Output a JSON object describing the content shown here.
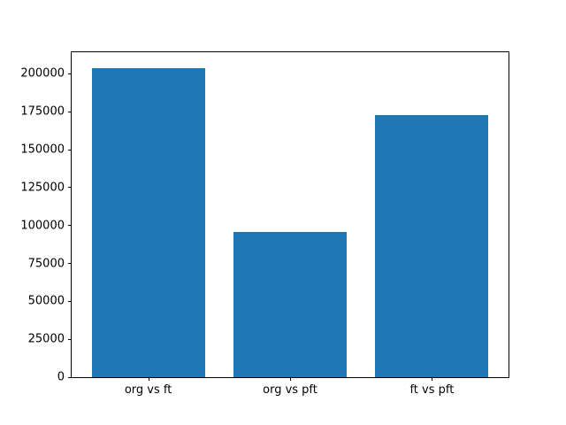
{
  "figure": {
    "background": "#ffffff"
  },
  "chart_data": {
    "type": "bar",
    "title": "",
    "xlabel": "",
    "ylabel": "",
    "categories": [
      "org vs ft",
      "org vs pft",
      "ft vs pft"
    ],
    "values": [
      204000,
      95700,
      173000
    ],
    "bar_color": "#1f77b4",
    "bar_width": 0.8,
    "xlim": [
      -0.54,
      2.54
    ],
    "ylim": [
      0,
      214200
    ],
    "yticks": [
      0,
      25000,
      50000,
      75000,
      100000,
      125000,
      150000,
      175000,
      200000
    ],
    "ytick_labels": [
      "0",
      "25000",
      "50000",
      "75000",
      "100000",
      "125000",
      "150000",
      "175000",
      "200000"
    ],
    "grid": false,
    "legend": null,
    "spine_color": "#000000"
  }
}
